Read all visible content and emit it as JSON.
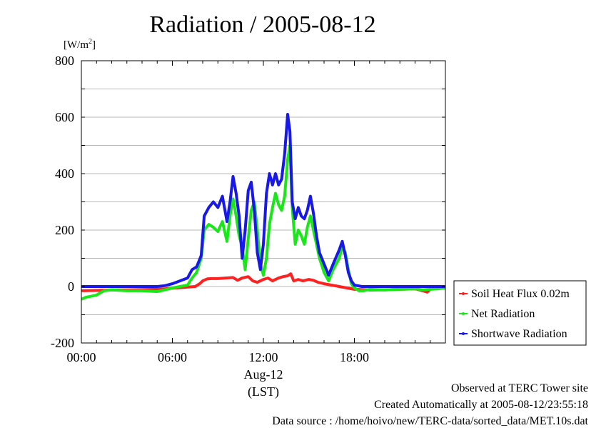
{
  "chart_data": {
    "type": "line",
    "title": "Radiation / 2005-08-12",
    "ylabel": "[W/m",
    "ylabel_sup": "2",
    "ylabel_suffix": "]",
    "ylim": [
      -200,
      800
    ],
    "yticks": [
      800,
      600,
      400,
      200,
      0,
      -200
    ],
    "xlim": [
      0,
      24
    ],
    "xticks": [
      {
        "value": 0,
        "label": "00:00"
      },
      {
        "value": 6,
        "label": "06:00"
      },
      {
        "value": 12,
        "label": "12:00"
      },
      {
        "value": 18,
        "label": "18:00"
      }
    ],
    "xlabel_date": "Aug-12",
    "xlabel": "(LST)",
    "grid": true,
    "legend_position": "right",
    "series": [
      {
        "name": "Soil Heat Flux 0.02m",
        "color": "#ff2020",
        "x": [
          0,
          1,
          2,
          3,
          4,
          5,
          5.5,
          6,
          6.5,
          7,
          7.5,
          7.8,
          8,
          8.3,
          8.6,
          9,
          9.5,
          10,
          10.3,
          10.6,
          11,
          11.3,
          11.6,
          12,
          12.3,
          12.6,
          13,
          13.3,
          13.6,
          13.8,
          14,
          14.3,
          14.6,
          15,
          15.3,
          15.6,
          16,
          16.5,
          17,
          17.5,
          18,
          19,
          20,
          21,
          22,
          22.5,
          22.8,
          23,
          23.5,
          24
        ],
        "y": [
          -15,
          -14,
          -12,
          -12,
          -11,
          -10,
          -8,
          -6,
          -4,
          -2,
          0,
          10,
          20,
          27,
          28,
          28,
          30,
          32,
          22,
          30,
          35,
          20,
          15,
          25,
          30,
          20,
          30,
          35,
          38,
          45,
          20,
          25,
          20,
          25,
          22,
          15,
          10,
          5,
          0,
          -5,
          -10,
          -12,
          -12,
          -10,
          -8,
          -15,
          -20,
          -10,
          -5,
          -3
        ]
      },
      {
        "name": "Net Radiation",
        "color": "#18e818",
        "x": [
          0,
          0.3,
          0.6,
          1,
          1.5,
          2,
          3,
          4,
          5,
          5.5,
          6,
          6.5,
          7,
          7.3,
          7.6,
          7.9,
          8.1,
          8.4,
          8.7,
          9,
          9.3,
          9.6,
          9.8,
          10,
          10.2,
          10.4,
          10.6,
          10.8,
          11,
          11.2,
          11.4,
          11.6,
          11.8,
          12,
          12.2,
          12.4,
          12.6,
          12.8,
          13,
          13.2,
          13.4,
          13.6,
          13.75,
          13.9,
          14.1,
          14.3,
          14.5,
          14.7,
          14.9,
          15.1,
          15.3,
          15.5,
          15.7,
          16,
          16.3,
          16.6,
          17,
          17.2,
          17.4,
          17.6,
          17.8,
          18,
          18.3,
          18.6,
          19,
          20,
          21,
          22,
          22.5,
          23,
          23.5,
          24
        ],
        "y": [
          -45,
          -38,
          -35,
          -30,
          -15,
          -12,
          -15,
          -15,
          -18,
          -12,
          -5,
          0,
          5,
          30,
          50,
          100,
          200,
          220,
          210,
          195,
          230,
          160,
          250,
          310,
          250,
          180,
          140,
          60,
          170,
          270,
          300,
          200,
          80,
          40,
          100,
          220,
          280,
          330,
          290,
          270,
          320,
          450,
          500,
          280,
          150,
          200,
          180,
          150,
          210,
          250,
          200,
          150,
          100,
          50,
          20,
          60,
          100,
          140,
          120,
          60,
          10,
          -5,
          -15,
          -15,
          -10,
          -12,
          -10,
          -8,
          -12,
          -10,
          -8,
          -5
        ]
      },
      {
        "name": "Shortwave Radiation",
        "color": "#1818e8",
        "x": [
          0,
          1,
          2,
          3,
          4,
          5,
          5.5,
          6,
          6.5,
          7,
          7.3,
          7.6,
          7.9,
          8.1,
          8.4,
          8.7,
          9,
          9.3,
          9.6,
          9.8,
          10,
          10.2,
          10.4,
          10.6,
          10.8,
          11,
          11.2,
          11.4,
          11.6,
          11.8,
          12,
          12.2,
          12.4,
          12.6,
          12.8,
          13,
          13.2,
          13.4,
          13.6,
          13.75,
          13.9,
          14.1,
          14.3,
          14.5,
          14.7,
          14.9,
          15.1,
          15.3,
          15.5,
          15.7,
          16,
          16.3,
          16.6,
          17,
          17.2,
          17.4,
          17.6,
          17.8,
          18,
          18.5,
          19,
          20,
          21,
          22,
          23,
          24
        ],
        "y": [
          0,
          0,
          0,
          0,
          0,
          0,
          3,
          10,
          20,
          30,
          60,
          70,
          110,
          250,
          280,
          300,
          280,
          320,
          230,
          300,
          390,
          330,
          250,
          100,
          200,
          340,
          370,
          270,
          120,
          60,
          150,
          330,
          400,
          360,
          400,
          360,
          380,
          470,
          610,
          550,
          300,
          240,
          280,
          250,
          240,
          270,
          320,
          260,
          180,
          120,
          80,
          40,
          80,
          130,
          160,
          110,
          50,
          20,
          5,
          0,
          0,
          0,
          0,
          0,
          0,
          0
        ]
      }
    ]
  },
  "footer": {
    "observed": "Observed at TERC Tower site",
    "created": "Created Automatically at 2005-08-12/23:55:18",
    "source": "Data source : /home/hoivo/new/TERC-data/sorted_data/MET.10s.dat"
  }
}
